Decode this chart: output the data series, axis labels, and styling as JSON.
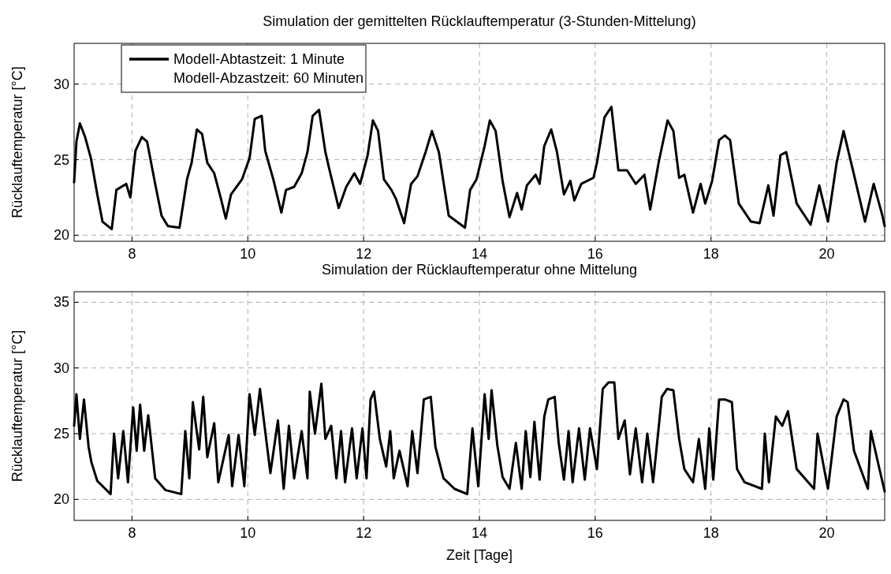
{
  "chart_data": [
    {
      "type": "line",
      "title": "Simulation der gemittelten Rücklauftemperatur (3-Stunden-Mittelung)",
      "ylabel": "Rücklauftemperatur [°C]",
      "xlim": [
        7,
        21
      ],
      "xticks": [
        8,
        10,
        12,
        14,
        16,
        18,
        20
      ],
      "ylim": [
        19.6,
        32.7
      ],
      "yticks": [
        20,
        25,
        30
      ],
      "grid": true,
      "legend": "top left",
      "annotations": [
        "Modell-Abzastzeit: 60 Minuten"
      ],
      "series": [
        {
          "name": "Modell-Abtastzeit: 1 Minute",
          "color": "#000000",
          "x": [
            7,
            7.04,
            7.1,
            7.19,
            7.29,
            7.4,
            7.49,
            7.65,
            7.73,
            7.9,
            7.97,
            8.06,
            8.17,
            8.26,
            8.4,
            8.51,
            8.62,
            8.82,
            8.95,
            9.03,
            9.12,
            9.21,
            9.3,
            9.42,
            9.53,
            9.62,
            9.71,
            9.9,
            10.03,
            10.12,
            10.24,
            10.3,
            10.44,
            10.58,
            10.66,
            10.8,
            10.93,
            11.03,
            11.12,
            11.23,
            11.34,
            11.4,
            11.57,
            11.7,
            11.84,
            11.94,
            12.07,
            12.16,
            12.25,
            12.35,
            12.48,
            12.56,
            12.7,
            12.82,
            12.93,
            13.07,
            13.18,
            13.3,
            13.47,
            13.75,
            13.84,
            13.95,
            14.09,
            14.18,
            14.28,
            14.4,
            14.52,
            14.65,
            14.73,
            14.82,
            14.97,
            15.04,
            15.12,
            15.24,
            15.34,
            15.46,
            15.57,
            15.64,
            15.76,
            15.97,
            16.03,
            16.16,
            16.28,
            16.4,
            16.55,
            16.7,
            16.85,
            16.95,
            17.1,
            17.25,
            17.35,
            17.45,
            17.54,
            17.69,
            17.82,
            17.9,
            18.02,
            18.14,
            18.24,
            18.33,
            18.48,
            18.69,
            18.84,
            18.99,
            19.08,
            19.2,
            19.3,
            19.48,
            19.72,
            19.87,
            20.02,
            20.17,
            20.29,
            20.47,
            20.66,
            20.81,
            20.96,
            21
          ],
          "values": [
            23.5,
            26.2,
            27.4,
            26.5,
            25.1,
            22.7,
            20.9,
            20.4,
            23.0,
            23.4,
            22.5,
            25.6,
            26.5,
            26.2,
            23.4,
            21.3,
            20.6,
            20.5,
            23.7,
            24.8,
            27.0,
            26.7,
            24.8,
            24.1,
            22.5,
            21.1,
            22.7,
            23.7,
            25.1,
            27.7,
            27.9,
            25.6,
            23.7,
            21.5,
            23.0,
            23.2,
            24.1,
            25.5,
            27.9,
            28.3,
            25.5,
            24.5,
            21.8,
            23.2,
            24.1,
            23.4,
            25.3,
            27.6,
            26.9,
            23.7,
            23.0,
            22.4,
            20.8,
            23.4,
            23.9,
            25.5,
            26.9,
            25.5,
            21.3,
            20.5,
            23.0,
            23.7,
            25.9,
            27.6,
            26.9,
            23.6,
            21.2,
            22.8,
            21.7,
            23.3,
            24.0,
            23.4,
            25.9,
            27.0,
            25.5,
            22.7,
            23.6,
            22.3,
            23.4,
            23.8,
            24.8,
            27.8,
            28.5,
            24.3,
            24.3,
            23.4,
            24.0,
            21.7,
            24.9,
            27.6,
            26.9,
            23.8,
            24.0,
            21.5,
            23.4,
            22.1,
            23.6,
            26.3,
            26.6,
            26.3,
            22.1,
            20.9,
            20.8,
            23.3,
            21.3,
            25.3,
            25.5,
            22.1,
            20.7,
            23.3,
            20.9,
            24.8,
            26.9,
            24.0,
            20.9,
            23.4,
            21.3,
            20.6
          ]
        }
      ]
    },
    {
      "type": "line",
      "title": "Simulation der Rücklauftemperatur ohne Mittelung",
      "xlabel": "Zeit [Tage]",
      "ylabel": "Rücklauftemperatur [°C]",
      "xlim": [
        7,
        21
      ],
      "xticks": [
        8,
        10,
        12,
        14,
        16,
        18,
        20
      ],
      "ylim": [
        18.4,
        35.8
      ],
      "yticks": [
        20,
        25,
        30,
        35
      ],
      "grid": true,
      "series": [
        {
          "color": "#000000",
          "x": [
            7,
            7.04,
            7.1,
            7.17,
            7.25,
            7.3,
            7.4,
            7.63,
            7.69,
            7.76,
            7.85,
            7.93,
            8.02,
            8.08,
            8.14,
            8.21,
            8.28,
            8.4,
            8.58,
            8.85,
            8.92,
            8.99,
            9.05,
            9.16,
            9.23,
            9.3,
            9.42,
            9.49,
            9.67,
            9.73,
            9.84,
            9.94,
            10.03,
            10.12,
            10.21,
            10.3,
            10.39,
            10.52,
            10.62,
            10.71,
            10.8,
            10.93,
            11.03,
            11.07,
            11.16,
            11.27,
            11.34,
            11.44,
            11.53,
            11.61,
            11.68,
            11.8,
            11.88,
            11.98,
            12.05,
            12.12,
            12.18,
            12.28,
            12.39,
            12.46,
            12.52,
            12.62,
            12.76,
            12.84,
            12.93,
            13.04,
            13.16,
            13.24,
            13.38,
            13.57,
            13.79,
            13.88,
            13.98,
            14.09,
            14.16,
            14.21,
            14.31,
            14.4,
            14.52,
            14.63,
            14.73,
            14.8,
            14.88,
            14.95,
            15.04,
            15.12,
            15.19,
            15.3,
            15.37,
            15.46,
            15.54,
            15.61,
            15.72,
            15.82,
            15.91,
            16.03,
            16.13,
            16.23,
            16.33,
            16.4,
            16.51,
            16.6,
            16.7,
            16.81,
            16.9,
            17,
            17.15,
            17.24,
            17.35,
            17.45,
            17.54,
            17.69,
            17.79,
            17.9,
            17.97,
            18.04,
            18.14,
            18.24,
            18.36,
            18.45,
            18.58,
            18.88,
            18.93,
            19,
            19.12,
            19.23,
            19.33,
            19.48,
            19.78,
            19.84,
            20.02,
            20.17,
            20.29,
            20.36,
            20.47,
            20.71,
            20.76,
            20.91,
            21
          ],
          "values": [
            25.6,
            28.0,
            24.6,
            27.6,
            24.0,
            22.8,
            21.4,
            20.4,
            25.0,
            21.6,
            25.2,
            21.3,
            27.0,
            23.7,
            27.2,
            23.7,
            26.4,
            21.6,
            20.7,
            20.4,
            25.2,
            21.6,
            27.4,
            23.8,
            27.8,
            23.2,
            25.8,
            21.3,
            24.9,
            21.0,
            24.9,
            21.0,
            28.0,
            24.9,
            28.4,
            25.2,
            22.0,
            26.0,
            20.8,
            25.6,
            21.6,
            25.2,
            21.6,
            28.2,
            25.0,
            28.8,
            24.6,
            25.6,
            21.6,
            25.2,
            21.3,
            25.4,
            21.6,
            25.4,
            21.6,
            27.6,
            28.2,
            24.6,
            22.5,
            25.2,
            21.6,
            23.7,
            21.0,
            25.2,
            22.0,
            27.6,
            27.8,
            24.0,
            21.6,
            20.8,
            20.4,
            25.4,
            21.0,
            28.0,
            24.6,
            28.3,
            24.1,
            21.7,
            20.8,
            24.3,
            20.8,
            25.2,
            21.7,
            25.9,
            21.5,
            26.3,
            27.6,
            27.8,
            24.3,
            21.5,
            25.2,
            21.3,
            25.4,
            21.5,
            25.4,
            22.3,
            28.4,
            28.9,
            28.9,
            24.6,
            26.0,
            21.9,
            25.4,
            21.3,
            25.0,
            21.3,
            27.8,
            28.4,
            28.3,
            24.6,
            22.3,
            21.3,
            24.6,
            20.8,
            25.4,
            21.5,
            27.6,
            27.6,
            27.4,
            22.3,
            21.3,
            20.8,
            25.0,
            21.3,
            26.3,
            25.6,
            26.7,
            22.3,
            20.8,
            25.0,
            20.8,
            26.3,
            27.6,
            27.4,
            23.7,
            20.8,
            25.2,
            22.3,
            20.6
          ]
        }
      ]
    }
  ]
}
